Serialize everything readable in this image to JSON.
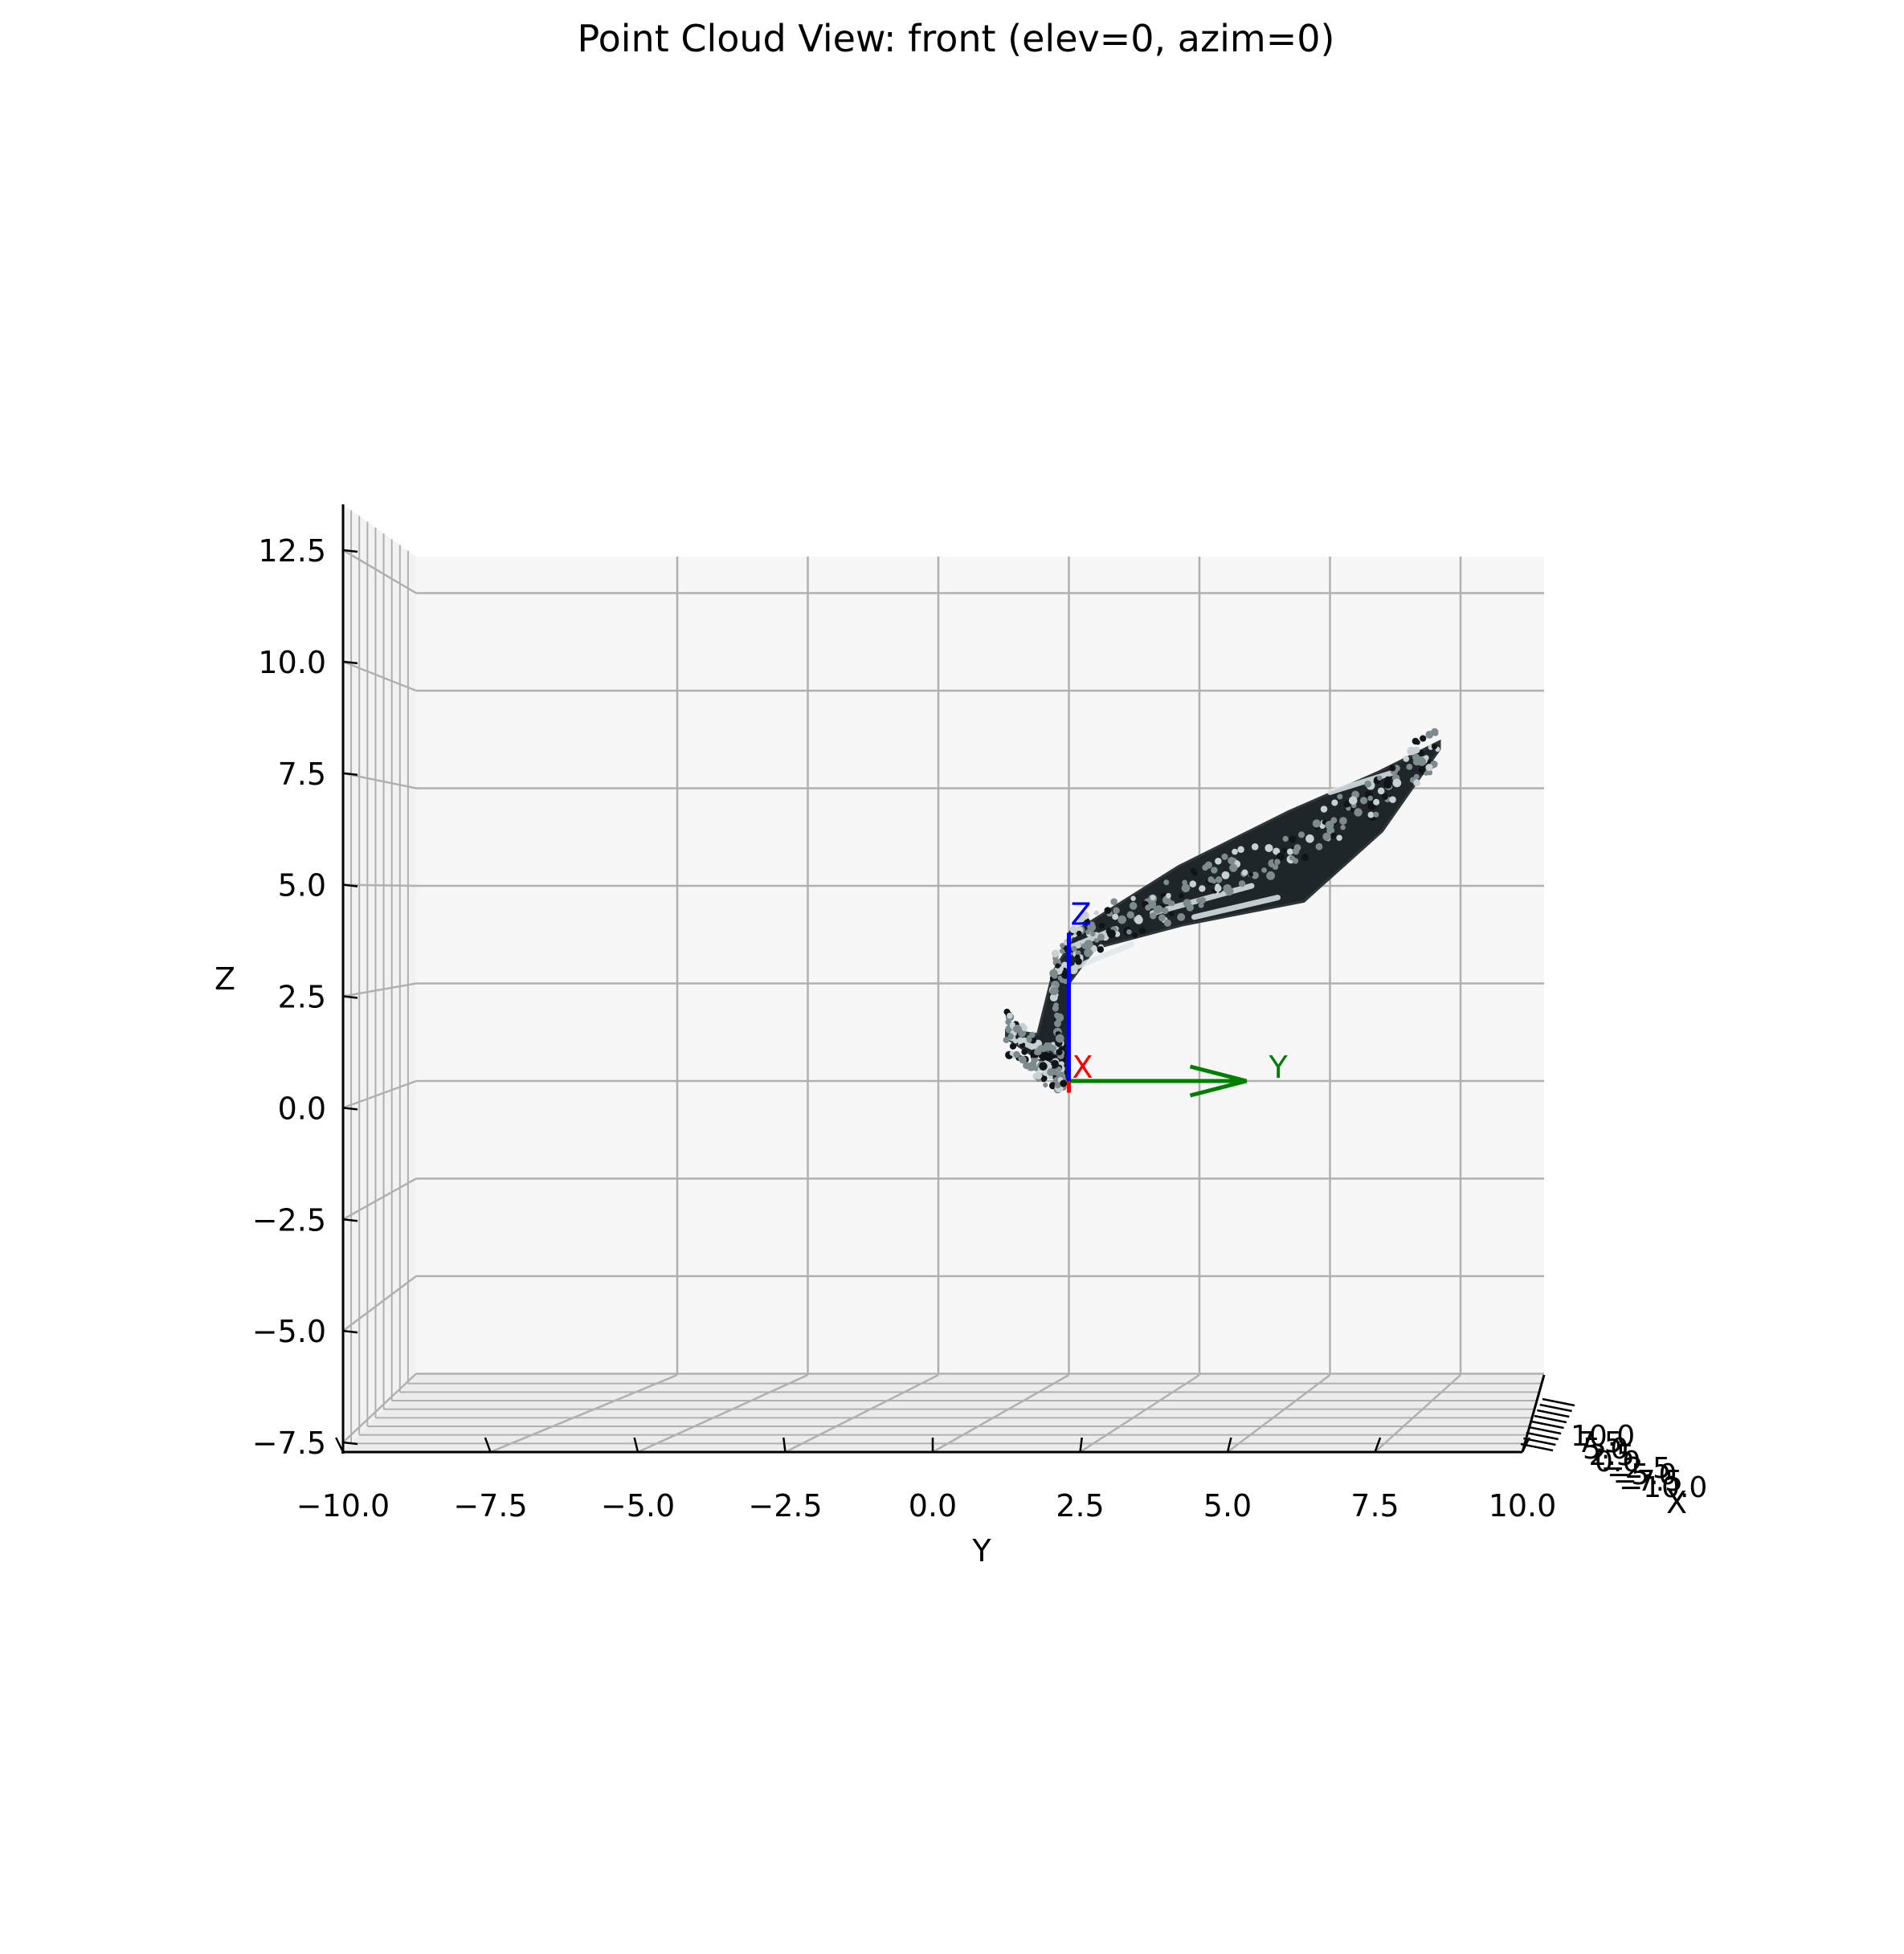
{
  "chart_data": {
    "type": "scatter",
    "title": "Point Cloud View: front (elev=0, azim=0)",
    "xlabel": "Y",
    "ylabel": "Z",
    "depth_label": "X",
    "view": {
      "elev": 0,
      "azim": 0
    },
    "grid": true,
    "ylim": [
      -8,
      13.5
    ],
    "xlim": [
      -10,
      10
    ],
    "y_ticks": [
      "−7.5",
      "−5.0",
      "−2.5",
      "0.0",
      "2.5",
      "5.0",
      "7.5",
      "10.0",
      "12.5"
    ],
    "x_ticks": [
      "−10.0",
      "−7.5",
      "−5.0",
      "−2.5",
      "0.0",
      "2.5",
      "5.0",
      "7.5",
      "10.0"
    ],
    "depth_ticks": [
      "10.0",
      "7.5",
      "5.0",
      "2.5",
      "0.0",
      "−2.5",
      "−5.0",
      "−7.5",
      "−10.0"
    ],
    "point_color": "#1e2629",
    "highlight_color": "#dfe8ea",
    "point_cloud": {
      "spine": [
        [
          -1.2,
          1.2
        ],
        [
          -0.5,
          0.4
        ],
        [
          -0.1,
          0.2
        ],
        [
          -0.3,
          2.6
        ],
        [
          0.3,
          3.7
        ],
        [
          2.0,
          4.6
        ],
        [
          4.0,
          5.8
        ],
        [
          5.8,
          7.2
        ],
        [
          7.1,
          8.6
        ]
      ],
      "upper": [
        [
          -1.2,
          1.3
        ],
        [
          -0.6,
          1.2
        ],
        [
          -0.3,
          2.8
        ],
        [
          0.2,
          3.9
        ],
        [
          2.1,
          5.5
        ],
        [
          4.2,
          6.9
        ],
        [
          5.9,
          7.9
        ],
        [
          7.1,
          8.7
        ]
      ],
      "lower": [
        [
          -1.2,
          1.1
        ],
        [
          -0.4,
          0.4
        ],
        [
          0.0,
          0.0
        ],
        [
          0.0,
          2.5
        ],
        [
          0.5,
          3.4
        ],
        [
          2.2,
          4.0
        ],
        [
          4.5,
          4.6
        ],
        [
          6.0,
          6.4
        ],
        [
          7.1,
          8.5
        ]
      ]
    },
    "frame_axes": [
      {
        "name": "X",
        "color": "#ff0000",
        "from": [
          0,
          0
        ],
        "to": [
          0,
          -0.3
        ]
      },
      {
        "name": "Y",
        "color": "#008000",
        "from": [
          0,
          0
        ],
        "to": [
          3.4,
          0
        ]
      },
      {
        "name": "Z",
        "color": "#0000ff",
        "from": [
          0,
          0
        ],
        "to": [
          0,
          3.8
        ]
      }
    ],
    "pane_color": "#f7f7f7",
    "grid_color": "#b0b0b0"
  }
}
